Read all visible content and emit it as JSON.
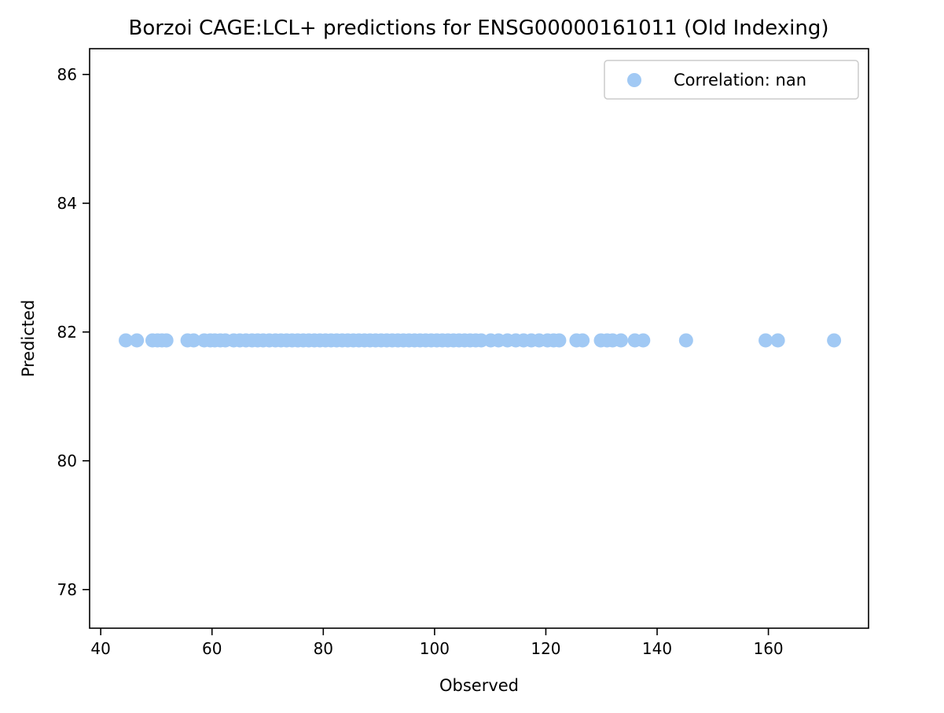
{
  "chart_data": {
    "type": "scatter",
    "title": "Borzoi CAGE:LCL+ predictions for ENSG00000161011 (Old Indexing)",
    "xlabel": "Observed",
    "ylabel": "Predicted",
    "xlim": [
      38,
      178
    ],
    "ylim": [
      77.4,
      86.4
    ],
    "xticks": [
      40,
      60,
      80,
      100,
      120,
      140,
      160
    ],
    "yticks": [
      78,
      80,
      82,
      84,
      86
    ],
    "grid": false,
    "legend": {
      "position": "top-right",
      "label": "Correlation: nan"
    },
    "colors": {
      "marker": "#a1c9f4",
      "axis": "#000000",
      "legend_border": "#cccccc"
    },
    "series": [
      {
        "name": "Correlation: nan",
        "x": [
          44.5,
          46.5,
          49.3,
          50.2,
          51.0,
          51.8,
          55.6,
          56.7,
          58.6,
          59.7,
          60.5,
          61.5,
          62.4,
          63.9,
          65.0,
          66.1,
          67.2,
          68.2,
          69.2,
          70.3,
          71.4,
          72.4,
          73.4,
          74.4,
          75.4,
          76.4,
          77.4,
          78.4,
          79.4,
          80.4,
          81.4,
          82.4,
          83.4,
          84.4,
          85.4,
          86.4,
          87.4,
          88.4,
          89.4,
          90.4,
          91.4,
          92.4,
          93.4,
          94.4,
          95.4,
          96.4,
          97.4,
          98.4,
          99.4,
          100.4,
          101.4,
          102.4,
          103.4,
          104.4,
          105.4,
          106.4,
          107.4,
          108.4,
          110.1,
          111.5,
          113.1,
          114.6,
          116.0,
          117.4,
          118.8,
          120.3,
          121.4,
          122.4,
          125.5,
          126.6,
          129.9,
          131.0,
          132.0,
          133.5,
          136.0,
          137.5,
          145.2,
          159.5,
          161.7,
          171.8
        ],
        "y": [
          81.87,
          81.87,
          81.87,
          81.87,
          81.87,
          81.87,
          81.87,
          81.87,
          81.87,
          81.87,
          81.87,
          81.87,
          81.87,
          81.87,
          81.87,
          81.87,
          81.87,
          81.87,
          81.87,
          81.87,
          81.87,
          81.87,
          81.87,
          81.87,
          81.87,
          81.87,
          81.87,
          81.87,
          81.87,
          81.87,
          81.87,
          81.87,
          81.87,
          81.87,
          81.87,
          81.87,
          81.87,
          81.87,
          81.87,
          81.87,
          81.87,
          81.87,
          81.87,
          81.87,
          81.87,
          81.87,
          81.87,
          81.87,
          81.87,
          81.87,
          81.87,
          81.87,
          81.87,
          81.87,
          81.87,
          81.87,
          81.87,
          81.87,
          81.87,
          81.87,
          81.87,
          81.87,
          81.87,
          81.87,
          81.87,
          81.87,
          81.87,
          81.87,
          81.87,
          81.87,
          81.87,
          81.87,
          81.87,
          81.87,
          81.87,
          81.87,
          81.87,
          81.87,
          81.87,
          81.87
        ]
      }
    ]
  }
}
